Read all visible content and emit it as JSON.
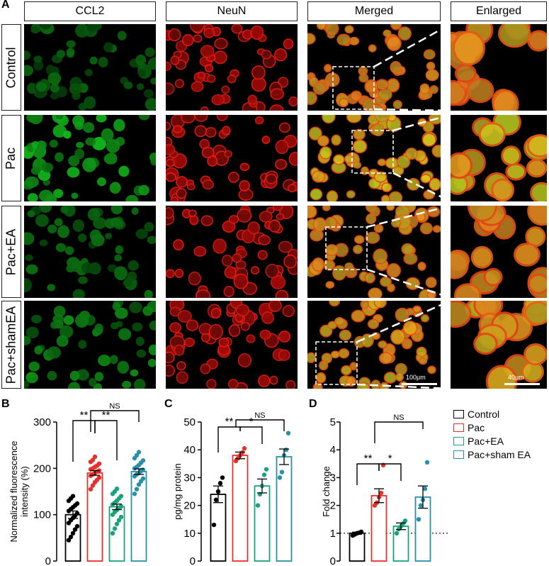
{
  "figure_panel_letters": {
    "a": "A",
    "b": "B",
    "c": "C",
    "d": "D"
  },
  "image_grid": {
    "columns": [
      "CCL2",
      "NeuN",
      "Merged",
      "Enlarged"
    ],
    "rows": [
      "Control",
      "Pac",
      "Pac+EA",
      "Pac+shamEA"
    ],
    "scalebar_merged": "100μm",
    "scalebar_enlarged": "40μm",
    "colors": {
      "ccl2": "#22c52a",
      "neun": "#e0221a",
      "merged": "#c8a020"
    }
  },
  "legend": {
    "items": [
      "Control",
      "Pac",
      "Pac+EA",
      "Pac+sham EA"
    ],
    "colors": [
      "#000000",
      "#e8302a",
      "#1aa37a",
      "#2a8fa8"
    ]
  },
  "chart_data": [
    {
      "type": "bar",
      "panel": "B",
      "ylabel": "Normalized fluorescence intensity (%)",
      "ylim": [
        0,
        300
      ],
      "yticks": [
        "0",
        "100",
        "200",
        "300"
      ],
      "categories": [
        "Control",
        "Pac",
        "Pac+EA",
        "Pac+sham EA"
      ],
      "values": [
        100,
        190,
        117,
        193
      ],
      "errors": [
        8,
        5,
        6,
        6
      ],
      "points": [
        [
          45,
          52,
          60,
          68,
          75,
          82,
          88,
          93,
          98,
          103,
          108,
          112,
          116,
          120,
          124,
          130,
          135,
          140
        ],
        [
          155,
          163,
          170,
          175,
          180,
          184,
          187,
          190,
          193,
          195,
          198,
          200,
          203,
          206,
          210,
          214,
          218,
          225
        ],
        [
          60,
          70,
          80,
          88,
          95,
          100,
          106,
          110,
          115,
          118,
          122,
          126,
          130,
          135,
          140,
          145,
          150,
          156
        ],
        [
          145,
          155,
          165,
          172,
          178,
          183,
          187,
          190,
          194,
          197,
          200,
          203,
          207,
          212,
          217,
          222,
          228,
          235
        ]
      ],
      "annotations": [
        {
          "from": 0,
          "to": 1,
          "text": "**"
        },
        {
          "from": 1,
          "to": 2,
          "text": "**"
        },
        {
          "from": 1,
          "to": 3,
          "text": "NS"
        }
      ]
    },
    {
      "type": "bar",
      "panel": "C",
      "ylabel": "pg/mg protein",
      "ylim": [
        0,
        50
      ],
      "yticks": [
        "0",
        "10",
        "20",
        "30",
        "40",
        "50"
      ],
      "categories": [
        "Control",
        "Pac",
        "Pac+EA",
        "Pac+sham EA"
      ],
      "values": [
        24,
        38,
        27,
        37.5
      ],
      "errors": [
        3,
        1.2,
        2.5,
        2.8
      ],
      "points": [
        [
          13,
          22,
          25,
          28,
          30
        ],
        [
          36,
          37,
          38,
          39,
          40.5
        ],
        [
          20,
          24,
          27,
          31,
          33
        ],
        [
          30,
          32,
          38,
          40,
          46
        ]
      ],
      "annotations": [
        {
          "from": 0,
          "to": 1,
          "text": "**"
        },
        {
          "from": 1,
          "to": 2,
          "text": "*"
        },
        {
          "from": 1,
          "to": 3,
          "text": "NS"
        }
      ]
    },
    {
      "type": "bar",
      "panel": "D",
      "ylabel": "Fold change",
      "ylim": [
        0,
        5
      ],
      "yticks": [
        "0",
        "1",
        "2",
        "3",
        "4",
        "5"
      ],
      "reference_line": 1,
      "categories": [
        "Control",
        "Pac",
        "Pac+EA",
        "Pac+sham EA"
      ],
      "values": [
        1.0,
        2.35,
        1.25,
        2.3
      ],
      "errors": [
        0.04,
        0.25,
        0.12,
        0.4
      ],
      "points": [
        [
          0.92,
          0.96,
          1.0,
          1.02,
          1.05
        ],
        [
          2.0,
          2.1,
          2.3,
          2.45,
          3.45
        ],
        [
          1.0,
          1.15,
          1.25,
          1.35,
          1.45
        ],
        [
          1.5,
          2.0,
          2.2,
          2.6,
          3.55
        ]
      ],
      "annotations": [
        {
          "from": 0,
          "to": 1,
          "text": "**"
        },
        {
          "from": 1,
          "to": 2,
          "text": "*"
        },
        {
          "from": 1,
          "to": 3,
          "text": "NS"
        }
      ]
    }
  ]
}
